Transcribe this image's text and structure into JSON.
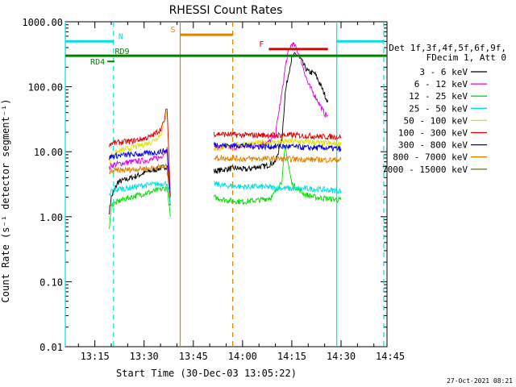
{
  "chart_data": {
    "type": "line",
    "title": "RHESSI Count Rates",
    "xlabel": "Start Time (30-Dec-03 13:05:22)",
    "ylabel": "Count Rate (s⁻¹ detector segment⁻¹)",
    "x_unit": "minutes after 13:05:22",
    "xlim": [
      1,
      99
    ],
    "ylim": [
      0.01,
      1000
    ],
    "yscale": "log",
    "x_ticks": [
      {
        "v": 10,
        "label": "13:15"
      },
      {
        "v": 25,
        "label": "13:30"
      },
      {
        "v": 40,
        "label": "13:45"
      },
      {
        "v": 55,
        "label": "14:00"
      },
      {
        "v": 70,
        "label": "14:15"
      },
      {
        "v": 85,
        "label": "14:30"
      },
      {
        "v": 100,
        "label": "14:45"
      }
    ],
    "y_ticks": [
      {
        "v": 0.01,
        "label": "0.01"
      },
      {
        "v": 0.1,
        "label": "0.10"
      },
      {
        "v": 1,
        "label": "1.00"
      },
      {
        "v": 10,
        "label": "10.00"
      },
      {
        "v": 100,
        "label": "100.00"
      },
      {
        "v": 1000,
        "label": "1000.00"
      }
    ],
    "legend_header": [
      "Det 1f,3f,4f,5f,6f,9f,",
      "FDecim 1, Att 0"
    ],
    "legend_position": "right",
    "series": [
      {
        "name": "3 - 6 keV",
        "color": "#000000",
        "segments": [
          {
            "x": [
              14.4,
              15,
              17,
              20,
              23,
              26,
              29,
              32,
              33
            ],
            "y": [
              1.2,
              2.0,
              3.4,
              3.8,
              4.3,
              4.9,
              5.4,
              6.0,
              1.5
            ]
          },
          {
            "x": [
              46.3,
              50,
              53,
              56,
              59,
              62,
              65,
              67,
              68,
              69,
              70,
              71,
              72,
              73,
              74,
              75,
              77,
              79,
              81
            ],
            "y": [
              5.0,
              5.4,
              5.6,
              5.3,
              5.8,
              6.0,
              7.0,
              16,
              80,
              160,
              280,
              310,
              300,
              250,
              200,
              170,
              160,
              100,
              58
            ]
          }
        ]
      },
      {
        "name": "6 - 12 keV",
        "color": "#e000e0",
        "segments": [
          {
            "x": [
              14.4,
              15,
              18,
              21,
              24,
              27,
              30,
              32,
              33
            ],
            "y": [
              5.5,
              6.2,
              6.6,
              7.0,
              7.2,
              7.5,
              8.2,
              11,
              1.5
            ]
          },
          {
            "x": [
              46.3,
              50,
              55,
              60,
              63,
              65,
              66,
              67,
              68,
              69,
              70,
              71,
              72,
              73,
              74,
              75,
              76,
              78,
              80,
              81
            ],
            "y": [
              12,
              11.5,
              12,
              13,
              14,
              18,
              40,
              80,
              200,
              350,
              460,
              420,
              330,
              240,
              160,
              110,
              90,
              60,
              38,
              36
            ]
          }
        ]
      },
      {
        "name": "12 - 25 keV",
        "color": "#00e000",
        "segments": [
          {
            "x": [
              14.4,
              15,
              18,
              21,
              24,
              27,
              30,
              32,
              33
            ],
            "y": [
              0.6,
              1.5,
              1.8,
              2.0,
              2.2,
              2.4,
              2.6,
              2.8,
              1.0
            ]
          },
          {
            "x": [
              46.3,
              50,
              55,
              60,
              64,
              67,
              68,
              70,
              74,
              77,
              81,
              85
            ],
            "y": [
              2.0,
              1.8,
              1.7,
              1.8,
              2.0,
              3.6,
              12,
              3.2,
              2.2,
              2.0,
              1.9,
              1.8
            ]
          }
        ]
      },
      {
        "name": "25 - 50 keV",
        "color": "#00e0e0",
        "segments": [
          {
            "x": [
              14.4,
              15,
              18,
              21,
              24,
              27,
              30,
              32,
              33
            ],
            "y": [
              2.0,
              2.5,
              2.7,
              2.8,
              3.0,
              3.1,
              3.2,
              3.3,
              1.5
            ]
          },
          {
            "x": [
              46.3,
              50,
              55,
              60,
              65,
              70,
              75,
              80,
              85
            ],
            "y": [
              3.2,
              3.0,
              2.9,
              2.9,
              2.8,
              2.7,
              2.7,
              2.6,
              2.5
            ]
          }
        ]
      },
      {
        "name": "50 - 100 keV",
        "color": "#e0e000",
        "segments": [
          {
            "x": [
              14.4,
              15,
              18,
              21,
              24,
              27,
              30,
              31,
              32,
              33
            ],
            "y": [
              6.0,
              9.0,
              10.5,
              11.5,
              12.5,
              14,
              18,
              25,
              45,
              2.0
            ]
          },
          {
            "x": [
              46.3,
              50,
              55,
              60,
              65,
              70,
              75,
              80,
              85
            ],
            "y": [
              11,
              12,
              13,
              13.5,
              14,
              14.5,
              14,
              13.5,
              13
            ]
          }
        ]
      },
      {
        "name": "100 - 300 keV",
        "color": "#e00000",
        "segments": [
          {
            "x": [
              14.4,
              15,
              18,
              21,
              24,
              27,
              30,
              31,
              32,
              33
            ],
            "y": [
              13,
              13.5,
              14,
              14.5,
              15.5,
              17,
              22,
              28,
              50,
              2.0
            ]
          },
          {
            "x": [
              46.3,
              50,
              55,
              60,
              65,
              70,
              75,
              80,
              85
            ],
            "y": [
              19,
              18.5,
              18,
              18,
              18,
              18,
              17.5,
              17,
              17
            ]
          }
        ]
      },
      {
        "name": "300 - 800 keV",
        "color": "#0000e0",
        "segments": [
          {
            "x": [
              14.4,
              15,
              18,
              21,
              24,
              27,
              30,
              32,
              33
            ],
            "y": [
              8.0,
              8.5,
              8.8,
              9.0,
              9.2,
              9.5,
              10,
              10.5,
              2.0
            ]
          },
          {
            "x": [
              46.3,
              50,
              55,
              60,
              65,
              70,
              75,
              80,
              85
            ],
            "y": [
              13,
              12.5,
              12.5,
              12,
              12,
              12,
              11.5,
              11.5,
              11
            ]
          }
        ]
      },
      {
        "name": "800 - 7000 keV",
        "color": "#e08000",
        "segments": [
          {
            "x": [
              14.4,
              15,
              18,
              21,
              24,
              27,
              30,
              32,
              33
            ],
            "y": [
              4.5,
              5.0,
              5.2,
              5.3,
              5.5,
              5.6,
              5.8,
              6.0,
              2.0
            ]
          },
          {
            "x": [
              46.3,
              50,
              55,
              60,
              65,
              70,
              75,
              80,
              85
            ],
            "y": [
              8.0,
              8.0,
              7.8,
              7.8,
              7.8,
              7.7,
              7.6,
              7.5,
              7.5
            ]
          }
        ]
      },
      {
        "name": "7000 - 15000 keV",
        "color": "#808000",
        "segments": []
      }
    ],
    "annotations": {
      "vlines": [
        {
          "x": 1.0,
          "color": "#00e0e0",
          "dash": false
        },
        {
          "x": 15.7,
          "color": "#00e0e0",
          "dash": true
        },
        {
          "x": 36.0,
          "color": "#e08000",
          "dash": false
        },
        {
          "x": 52.0,
          "color": "#e08000",
          "dash": true
        },
        {
          "x": 83.7,
          "color": "#00e0e0",
          "dash": false
        },
        {
          "x": 98.0,
          "color": "#00e0e0",
          "dash": true
        }
      ],
      "hbars": [
        {
          "label": "N",
          "x0": 1.0,
          "x1": 15.7,
          "y": 500,
          "color": "#00e0e0",
          "width": 3
        },
        {
          "label": "",
          "x0": 83.7,
          "x1": 98.0,
          "y": 500,
          "color": "#00e0e0",
          "width": 3
        },
        {
          "label": "S",
          "x0": 36.0,
          "x1": 52.0,
          "y": 630,
          "color": "#e08000",
          "width": 3
        },
        {
          "label": "F",
          "x0": 63.0,
          "x1": 81.0,
          "y": 380,
          "color": "#e00000",
          "width": 3
        },
        {
          "label": "RD4",
          "x0": 13.8,
          "x1": 16.0,
          "y": 245,
          "color": "#008000",
          "width": 2
        },
        {
          "label": "RD9",
          "x0": 1.0,
          "x1": 99.0,
          "y": 300,
          "color": "#008000",
          "width": 3
        }
      ]
    }
  },
  "timestamp": "27-Oct-2021 08:21"
}
